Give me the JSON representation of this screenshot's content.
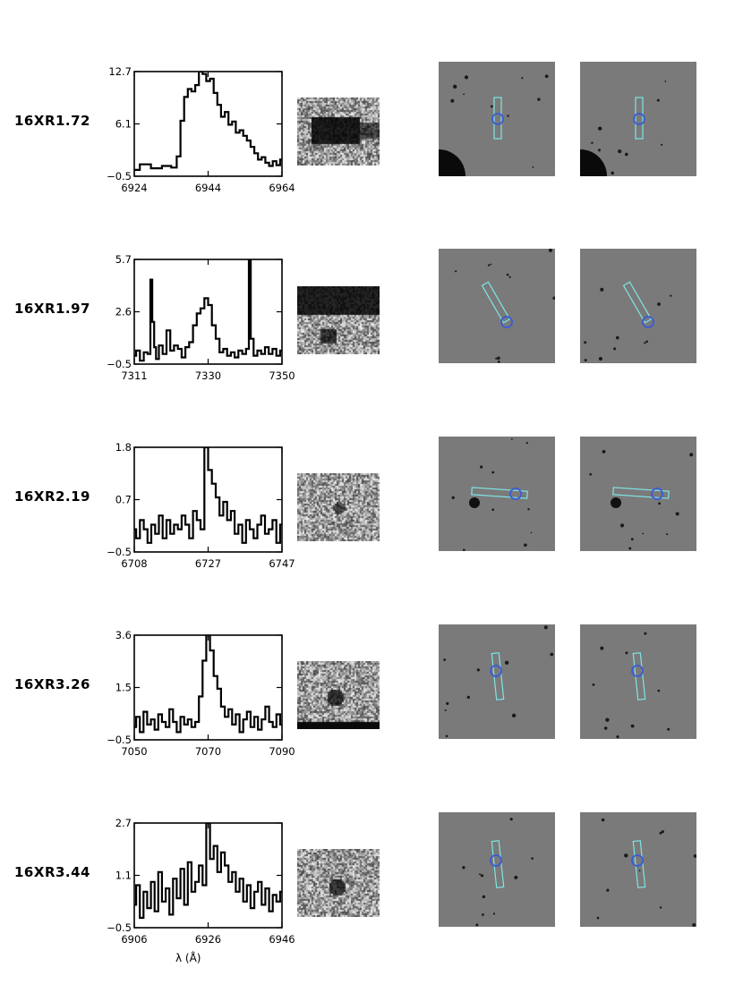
{
  "figure": {
    "xaxis_label": "λ (Å)",
    "rows": [
      {
        "name": "16XR1.72",
        "yticks": [
          "12.7",
          "6.1",
          "−0.5"
        ],
        "xticks": [
          "6924",
          "6944",
          "6964"
        ]
      },
      {
        "name": "16XR1.97",
        "yticks": [
          "5.7",
          "2.6",
          "−0.5"
        ],
        "xticks": [
          "7311",
          "7330",
          "7350"
        ]
      },
      {
        "name": "16XR2.19",
        "yticks": [
          "1.8",
          "0.7",
          "−0.5"
        ],
        "xticks": [
          "6708",
          "6727",
          "6747"
        ]
      },
      {
        "name": "16XR3.26",
        "yticks": [
          "3.6",
          "1.5",
          "−0.5"
        ],
        "xticks": [
          "7050",
          "7070",
          "7090"
        ]
      },
      {
        "name": "16XR3.44",
        "yticks": [
          "2.7",
          "1.1",
          "−0.5"
        ],
        "xticks": [
          "6906",
          "6926",
          "6946"
        ]
      }
    ]
  },
  "chart_data": [
    {
      "type": "line",
      "ylim": [
        -0.5,
        12.7
      ],
      "xlim": [
        6924,
        6964
      ],
      "x": [
        6924,
        6927,
        6930,
        6933,
        6935,
        6936,
        6937,
        6938,
        6939,
        6940,
        6941,
        6942,
        6943,
        6944,
        6945,
        6946,
        6947,
        6948,
        6949,
        6950,
        6951,
        6952,
        6953,
        6954,
        6955,
        6956,
        6957,
        6958,
        6959,
        6960,
        6961,
        6962,
        6963,
        6964
      ],
      "y": [
        0.3,
        1.0,
        0.5,
        0.8,
        0.6,
        2.0,
        6.5,
        9.5,
        10.5,
        10.2,
        11.0,
        12.7,
        12.4,
        11.5,
        11.8,
        10.0,
        8.5,
        7.0,
        7.6,
        6.0,
        6.4,
        5.0,
        5.3,
        4.6,
        4.0,
        3.2,
        2.4,
        1.6,
        1.9,
        1.2,
        0.8,
        1.4,
        0.9,
        1.6
      ]
    },
    {
      "type": "line",
      "ylim": [
        -0.5,
        5.7
      ],
      "xlim": [
        7311,
        7350
      ],
      "x": [
        7311,
        7312,
        7313,
        7314,
        7315,
        7315.5,
        7316,
        7316.5,
        7317,
        7318,
        7319,
        7320,
        7321,
        7322,
        7323,
        7324,
        7325,
        7326,
        7327,
        7328,
        7329,
        7330,
        7331,
        7332,
        7333,
        7334,
        7335,
        7336,
        7337,
        7338,
        7339,
        7340,
        7341,
        7341.5,
        7342,
        7343,
        7344,
        7345,
        7346,
        7347,
        7348,
        7349,
        7350
      ],
      "y": [
        0.0,
        0.3,
        -0.3,
        0.2,
        0.1,
        4.5,
        2.0,
        0.5,
        -0.2,
        0.6,
        0.1,
        1.5,
        0.3,
        0.6,
        0.4,
        -0.1,
        0.5,
        0.8,
        1.8,
        2.5,
        2.8,
        3.4,
        3.0,
        1.8,
        1.0,
        0.2,
        0.4,
        0.0,
        0.2,
        -0.1,
        0.3,
        0.1,
        0.4,
        5.7,
        1.0,
        0.0,
        0.3,
        0.1,
        0.5,
        0.1,
        0.4,
        0.0,
        0.3
      ]
    },
    {
      "type": "line",
      "ylim": [
        -0.5,
        1.8
      ],
      "xlim": [
        6708,
        6747
      ],
      "x": [
        6708,
        6709,
        6710,
        6711,
        6712,
        6713,
        6714,
        6715,
        6716,
        6717,
        6718,
        6719,
        6720,
        6721,
        6722,
        6723,
        6724,
        6725,
        6726,
        6727,
        6728,
        6729,
        6730,
        6731,
        6732,
        6733,
        6734,
        6735,
        6736,
        6737,
        6738,
        6739,
        6740,
        6741,
        6742,
        6743,
        6744,
        6745,
        6746,
        6747
      ],
      "y": [
        0.0,
        -0.2,
        0.2,
        0.0,
        -0.3,
        0.1,
        -0.1,
        0.3,
        -0.2,
        0.2,
        -0.1,
        0.1,
        0.0,
        0.3,
        0.1,
        -0.2,
        0.4,
        0.2,
        0.0,
        1.8,
        1.3,
        1.0,
        0.7,
        0.3,
        0.6,
        0.2,
        0.4,
        -0.1,
        0.1,
        -0.3,
        0.2,
        0.0,
        -0.2,
        0.1,
        0.3,
        -0.1,
        0.0,
        0.2,
        -0.3,
        0.1
      ]
    },
    {
      "type": "line",
      "ylim": [
        -0.5,
        3.6
      ],
      "xlim": [
        7050,
        7090
      ],
      "x": [
        7050,
        7051,
        7052,
        7053,
        7054,
        7055,
        7056,
        7057,
        7058,
        7059,
        7060,
        7061,
        7062,
        7063,
        7064,
        7065,
        7066,
        7067,
        7068,
        7069,
        7070,
        7071,
        7072,
        7073,
        7074,
        7075,
        7076,
        7077,
        7078,
        7079,
        7080,
        7081,
        7082,
        7083,
        7084,
        7085,
        7086,
        7087,
        7088,
        7089,
        7090
      ],
      "y": [
        0.0,
        0.4,
        -0.2,
        0.6,
        0.1,
        0.3,
        -0.1,
        0.5,
        0.2,
        0.0,
        0.7,
        0.2,
        -0.2,
        0.4,
        0.1,
        0.3,
        0.0,
        0.2,
        1.2,
        2.6,
        3.6,
        3.0,
        2.0,
        1.5,
        0.8,
        0.4,
        0.7,
        0.1,
        0.5,
        -0.2,
        0.3,
        0.6,
        0.0,
        0.4,
        -0.1,
        0.3,
        0.8,
        0.2,
        0.0,
        0.5,
        0.1
      ]
    },
    {
      "type": "line",
      "ylim": [
        -0.5,
        2.7
      ],
      "xlim": [
        6906,
        6946
      ],
      "x": [
        6906,
        6907,
        6908,
        6909,
        6910,
        6911,
        6912,
        6913,
        6914,
        6915,
        6916,
        6917,
        6918,
        6919,
        6920,
        6921,
        6922,
        6923,
        6924,
        6925,
        6926,
        6927,
        6928,
        6929,
        6930,
        6931,
        6932,
        6933,
        6934,
        6935,
        6936,
        6937,
        6938,
        6939,
        6940,
        6941,
        6942,
        6943,
        6944,
        6945,
        6946
      ],
      "y": [
        0.2,
        0.8,
        -0.2,
        0.6,
        0.1,
        0.9,
        0.0,
        1.2,
        0.3,
        0.7,
        -0.1,
        1.0,
        0.4,
        1.3,
        0.2,
        1.5,
        0.6,
        0.9,
        1.4,
        0.8,
        2.7,
        1.6,
        2.0,
        1.2,
        1.8,
        1.4,
        0.9,
        1.2,
        0.6,
        1.0,
        0.3,
        0.8,
        0.1,
        0.6,
        0.9,
        0.2,
        0.7,
        0.0,
        0.5,
        0.3,
        0.6
      ]
    }
  ]
}
